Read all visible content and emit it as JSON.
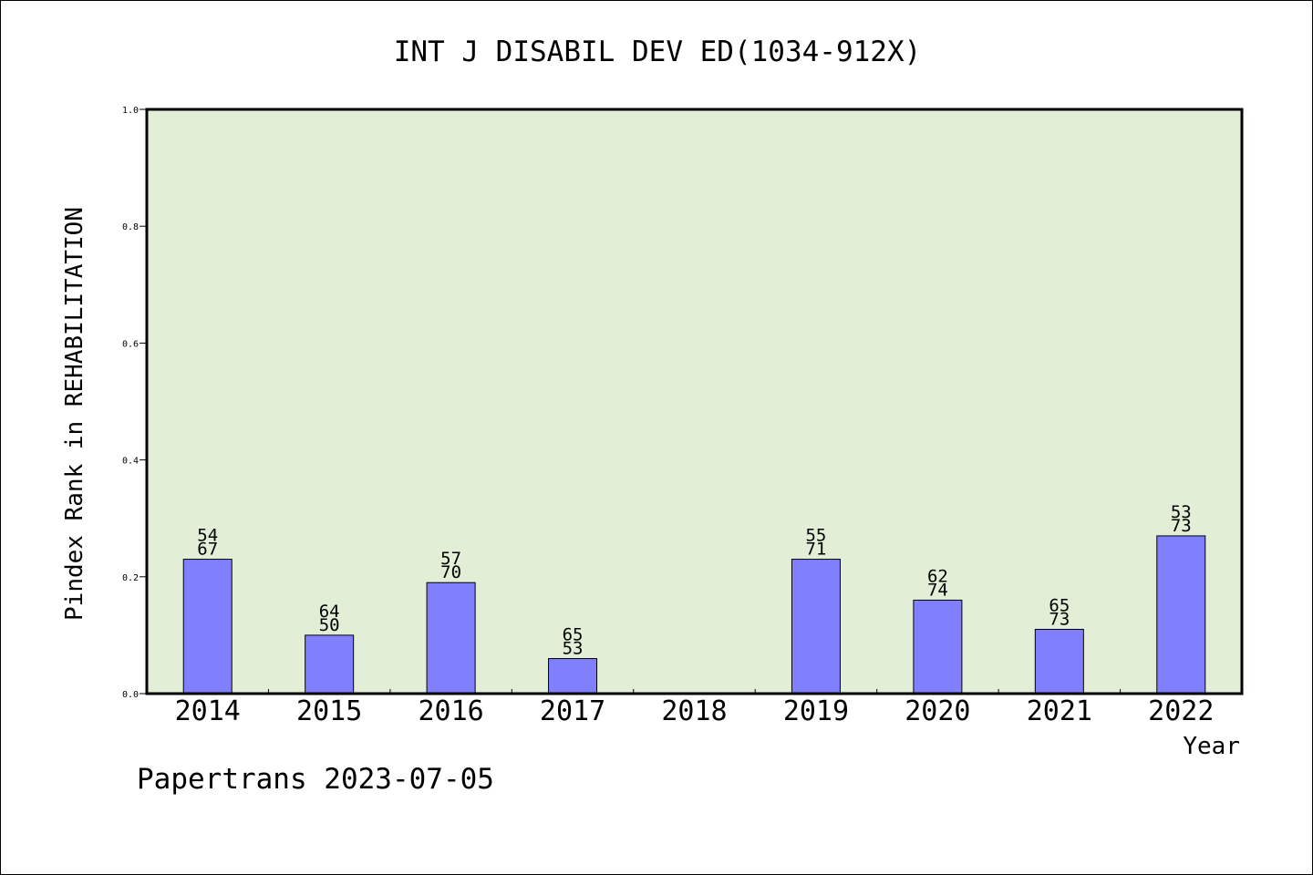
{
  "chart_data": {
    "type": "bar",
    "title": "INT J DISABIL DEV ED(1034-912X)",
    "xlabel": "Year",
    "ylabel": "Pindex Rank in REHABILITATION",
    "ylim": [
      0,
      1.0
    ],
    "yticks": [
      "0.0",
      "0.2",
      "0.4",
      "0.6",
      "0.8",
      "1.0"
    ],
    "categories": [
      "2014",
      "2015",
      "2016",
      "2017",
      "2018",
      "2019",
      "2020",
      "2021",
      "2022"
    ],
    "values": [
      0.23,
      0.1,
      0.19,
      0.06,
      null,
      0.23,
      0.16,
      0.11,
      0.27
    ],
    "labels_top": [
      "54",
      "64",
      "57",
      "65",
      "",
      "55",
      "62",
      "65",
      "53"
    ],
    "labels_bottom": [
      "67",
      "50",
      "70",
      "53",
      "",
      "71",
      "74",
      "73",
      "73"
    ],
    "grid": false,
    "colors": {
      "plot_bg": "#e2efd6",
      "bar": "#8080ff"
    }
  },
  "footer": {
    "text": "Papertrans 2023-07-05"
  }
}
